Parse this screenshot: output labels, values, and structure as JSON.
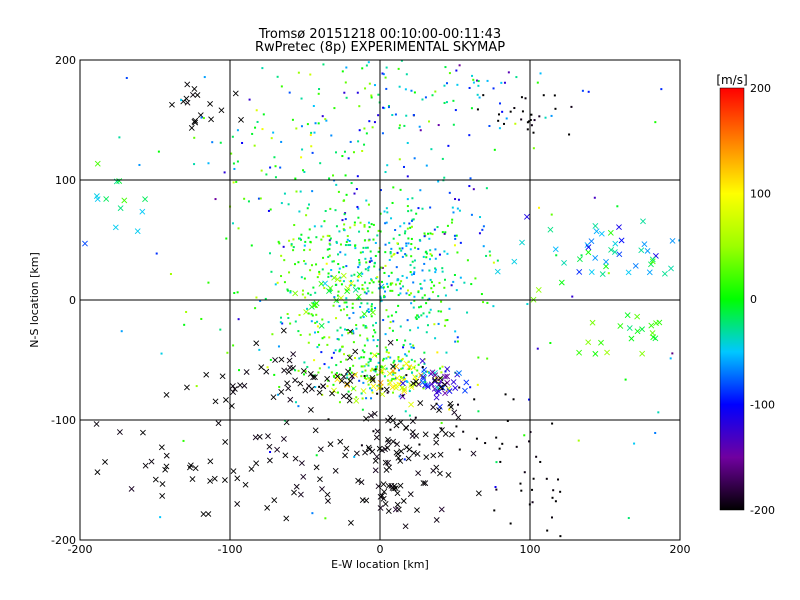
{
  "chart_data": {
    "type": "scatter",
    "title": "Tromsø 20151218 00:10:00-00:11:43",
    "subtitle": "RwPretec (8p) EXPERIMENTAL SKYMAP",
    "xlabel": "E-W location [km]",
    "ylabel": "N-S location [km]",
    "xlim": [
      -200,
      200
    ],
    "ylim": [
      -200,
      200
    ],
    "xticks": [
      "-200",
      "-100",
      "0",
      "100",
      "200"
    ],
    "yticks": [
      "-200",
      "-100",
      "0",
      "100",
      "200"
    ],
    "grid": true,
    "colorbar": {
      "label": "[m/s]",
      "range": [
        -200,
        200
      ],
      "ticks": [
        "200",
        "100",
        "0",
        "-100",
        "-200"
      ],
      "stops": [
        {
          "v": -200,
          "color": "#000000"
        },
        {
          "v": -150,
          "color": "#7000a0"
        },
        {
          "v": -100,
          "color": "#0000ff"
        },
        {
          "v": -50,
          "color": "#00c8ff"
        },
        {
          "v": 0,
          "color": "#00ff00"
        },
        {
          "v": 50,
          "color": "#9cff00"
        },
        {
          "v": 100,
          "color": "#ffff00"
        },
        {
          "v": 150,
          "color": "#ff8000"
        },
        {
          "v": 200,
          "color": "#ff0000"
        }
      ]
    },
    "clusters": [
      {
        "x": 0,
        "y": 10,
        "sx": 30,
        "sy": 35,
        "n": 380,
        "v": -20,
        "vs": 40,
        "marker": "dot"
      },
      {
        "x": -40,
        "y": 50,
        "sx": 30,
        "sy": 30,
        "n": 130,
        "v": 0,
        "vs": 40,
        "marker": "dot"
      },
      {
        "x": 25,
        "y": 60,
        "sx": 25,
        "sy": 30,
        "n": 90,
        "v": -60,
        "vs": 40,
        "marker": "dot"
      },
      {
        "x": -30,
        "y": 5,
        "sx": 15,
        "sy": 12,
        "n": 25,
        "v": 20,
        "vs": 30,
        "marker": "x"
      },
      {
        "x": 0,
        "y": -60,
        "sx": 25,
        "sy": 10,
        "n": 140,
        "v": 20,
        "vs": 40,
        "marker": "dot"
      },
      {
        "x": 5,
        "y": -68,
        "sx": 15,
        "sy": 8,
        "n": 45,
        "v": 90,
        "vs": 25,
        "marker": "x"
      },
      {
        "x": 40,
        "y": -70,
        "sx": 10,
        "sy": 8,
        "n": 40,
        "v": -120,
        "vs": 30,
        "marker": "x"
      },
      {
        "x": -50,
        "y": -70,
        "sx": 35,
        "sy": 15,
        "n": 60,
        "v": -200,
        "vs": 5,
        "marker": "x"
      },
      {
        "x": 10,
        "y": -130,
        "sx": 20,
        "sy": 30,
        "n": 110,
        "v": -200,
        "vs": 5,
        "marker": "x"
      },
      {
        "x": -70,
        "y": -150,
        "sx": 40,
        "sy": 25,
        "n": 50,
        "v": -200,
        "vs": 5,
        "marker": "x"
      },
      {
        "x": -140,
        "y": -140,
        "sx": 20,
        "sy": 20,
        "n": 15,
        "v": -200,
        "vs": 5,
        "marker": "x"
      },
      {
        "x": 100,
        "y": -150,
        "sx": 15,
        "sy": 25,
        "n": 30,
        "v": -200,
        "vs": 5,
        "marker": "dot"
      },
      {
        "x": 30,
        "y": -90,
        "sx": 40,
        "sy": 30,
        "n": 30,
        "v": -200,
        "vs": 5,
        "marker": "dot"
      },
      {
        "x": 155,
        "y": 40,
        "sx": 30,
        "sy": 15,
        "n": 45,
        "v": -40,
        "vs": 40,
        "marker": "x"
      },
      {
        "x": 170,
        "y": -25,
        "sx": 20,
        "sy": 12,
        "n": 25,
        "v": 10,
        "vs": 30,
        "marker": "x"
      },
      {
        "x": -180,
        "y": 80,
        "sx": 15,
        "sy": 25,
        "n": 15,
        "v": -30,
        "vs": 30,
        "marker": "x"
      },
      {
        "x": -120,
        "y": 160,
        "sx": 10,
        "sy": 12,
        "n": 18,
        "v": -200,
        "vs": 5,
        "marker": "x"
      },
      {
        "x": 100,
        "y": 155,
        "sx": 15,
        "sy": 10,
        "n": 25,
        "v": -200,
        "vs": 5,
        "marker": "dot"
      },
      {
        "x": 30,
        "y": 175,
        "sx": 40,
        "sy": 20,
        "n": 90,
        "v": -40,
        "vs": 50,
        "marker": "dot"
      },
      {
        "x": -50,
        "y": 140,
        "sx": 45,
        "sy": 35,
        "n": 100,
        "v": -20,
        "vs": 50,
        "marker": "dot"
      },
      {
        "x": -30,
        "y": -35,
        "sx": 30,
        "sy": 25,
        "n": 60,
        "v": 0,
        "vs": 40,
        "marker": "dot"
      },
      {
        "x": 0,
        "y": 0,
        "sx": 130,
        "sy": 120,
        "n": 120,
        "v": -40,
        "vs": 60,
        "marker": "dot"
      }
    ]
  }
}
